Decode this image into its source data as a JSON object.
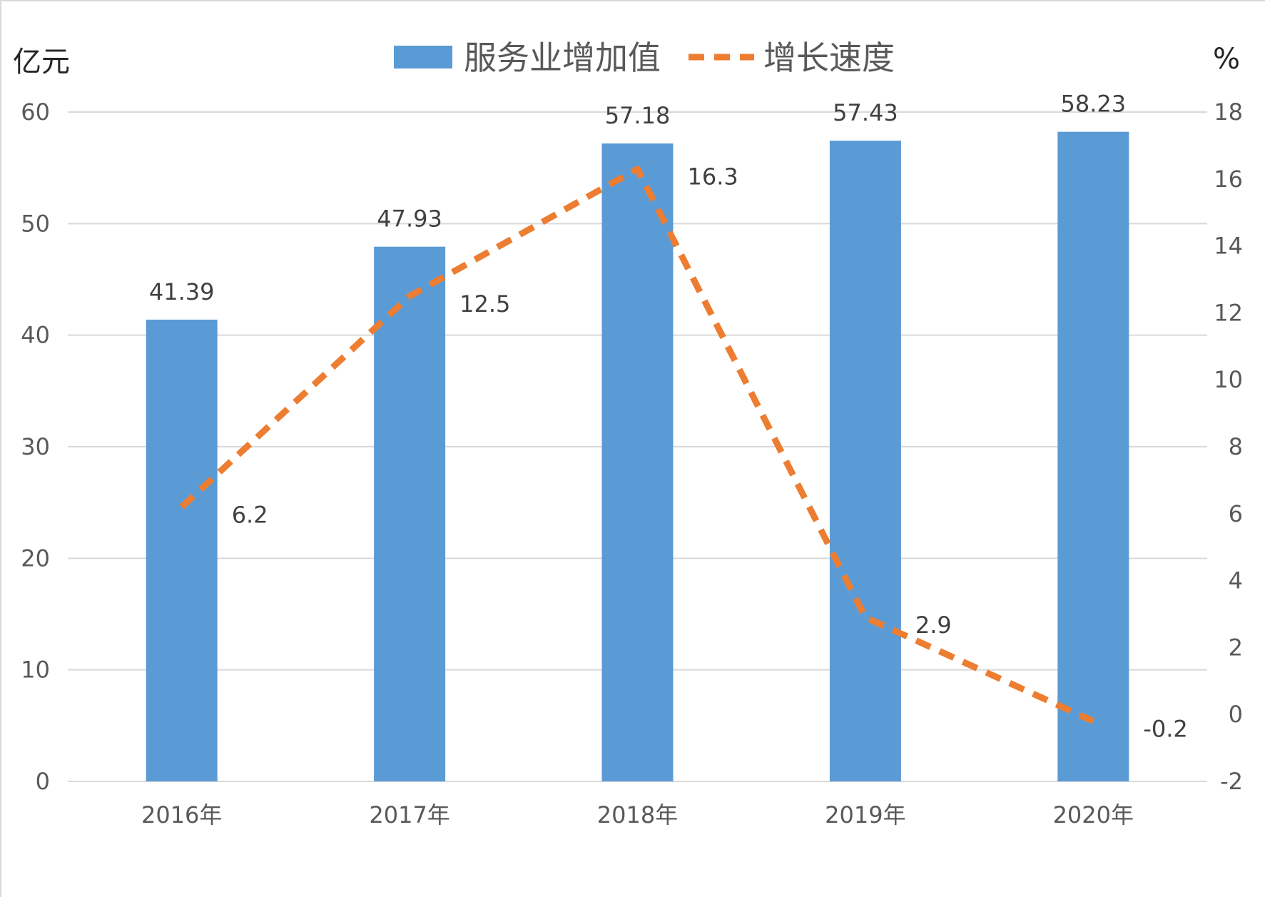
{
  "chart_data": {
    "type": "bar",
    "categories": [
      "2016年",
      "2017年",
      "2018年",
      "2019年",
      "2020年"
    ],
    "series": [
      {
        "name": "服务业增加值",
        "type": "bar",
        "axis": "left",
        "values": [
          41.39,
          47.93,
          57.18,
          57.43,
          58.23
        ],
        "color": "#5b9bd5"
      },
      {
        "name": "增长速度",
        "type": "line",
        "style": "dashed",
        "axis": "right",
        "values": [
          6.2,
          12.5,
          16.3,
          2.9,
          -0.2
        ],
        "color": "#ed7d31"
      }
    ],
    "y_left": {
      "unit": "亿元",
      "ylim": [
        0,
        60
      ],
      "ticks": [
        0,
        10,
        20,
        30,
        40,
        50,
        60
      ]
    },
    "y_right": {
      "unit": "%",
      "ylim": [
        -2,
        18
      ],
      "ticks": [
        -2,
        0,
        2,
        4,
        6,
        8,
        10,
        12,
        14,
        16,
        18
      ]
    },
    "grid": true,
    "legend_position": "top-center",
    "gridline_color": "#d9d9d9"
  }
}
